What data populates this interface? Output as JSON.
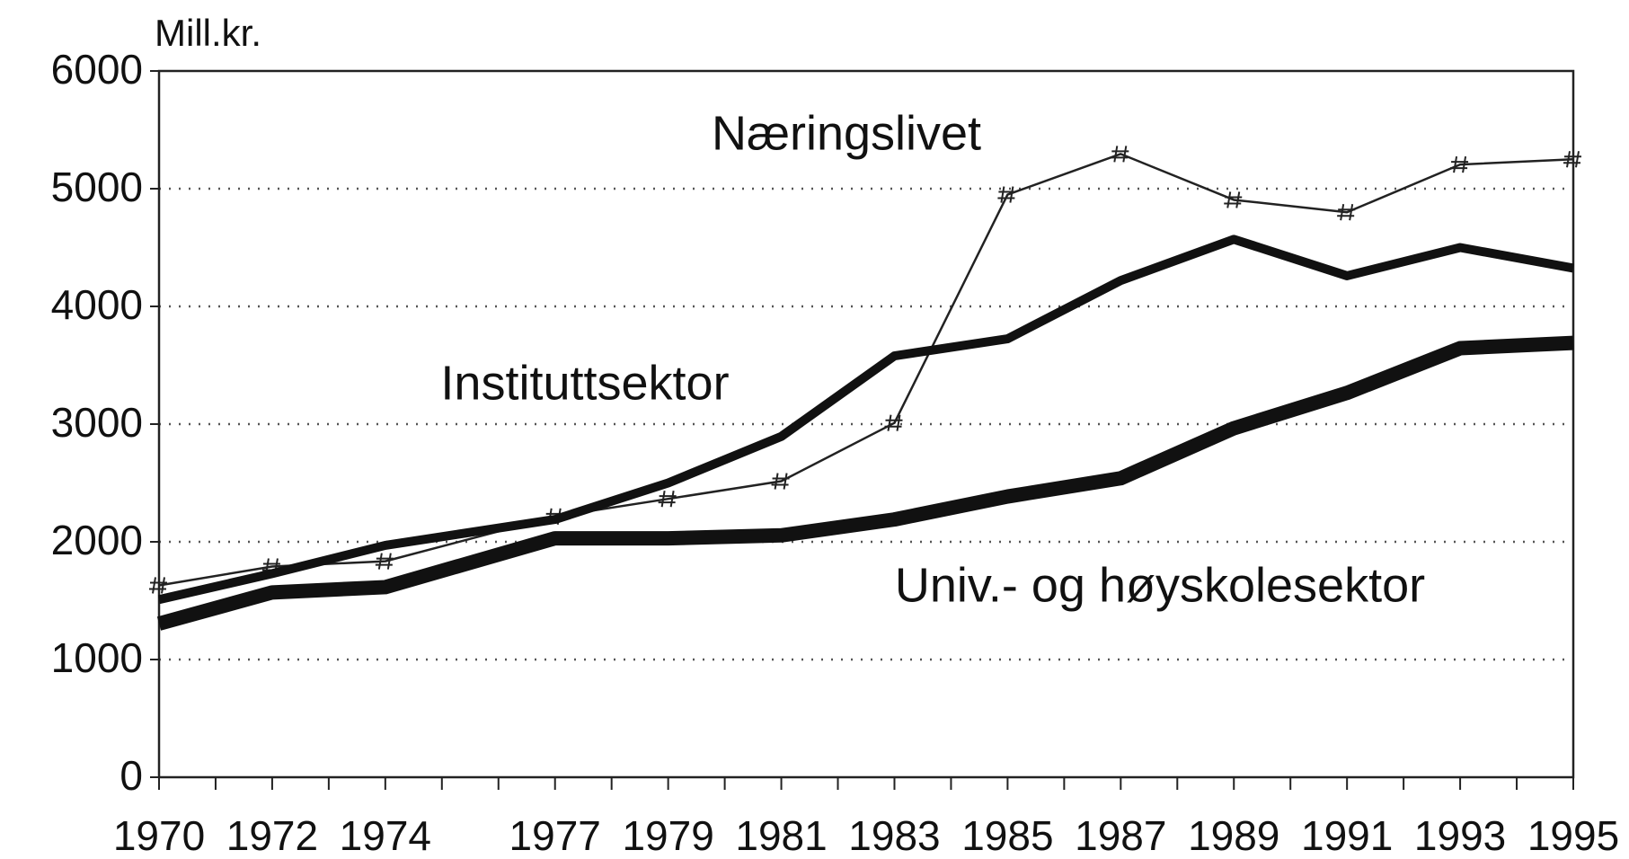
{
  "chart_data": {
    "type": "line",
    "y_label": "Mill.kr.",
    "x": [
      1970,
      1972,
      1974,
      1977,
      1979,
      1981,
      1983,
      1985,
      1987,
      1989,
      1991,
      1993,
      1995
    ],
    "series": [
      {
        "name": "Næringslivet",
        "color": "#222222",
        "values": [
          1630,
          1790,
          1835,
          2215,
          2365,
          2515,
          3010,
          4950,
          5295,
          4905,
          4800,
          5205,
          5250
        ]
      },
      {
        "name": "Instituttsektor",
        "color": "#111111",
        "values": [
          1510,
          1730,
          1970,
          2190,
          2500,
          2895,
          3580,
          3725,
          4220,
          4570,
          4260,
          4500,
          4325
        ]
      },
      {
        "name": "Univ.- og høyskolesektor",
        "color": "#111111",
        "values": [
          1305,
          1570,
          1615,
          2030,
          2030,
          2055,
          2190,
          2385,
          2540,
          2965,
          3265,
          3645,
          3690
        ]
      }
    ],
    "xlim": [
      1970,
      1995
    ],
    "xticks": [
      1970,
      1972,
      1974,
      1977,
      1979,
      1981,
      1983,
      1985,
      1987,
      1989,
      1991,
      1993,
      1995
    ],
    "xminorticks": [
      1970,
      1971,
      1972,
      1973,
      1974,
      1975,
      1976,
      1977,
      1978,
      1979,
      1980,
      1981,
      1982,
      1983,
      1984,
      1985,
      1986,
      1987,
      1988,
      1989,
      1990,
      1991,
      1992,
      1993,
      1994,
      1995
    ],
    "ylim": [
      0,
      6000
    ],
    "yticks": [
      0,
      1000,
      2000,
      3000,
      4000,
      5000,
      6000
    ],
    "grid": true
  }
}
